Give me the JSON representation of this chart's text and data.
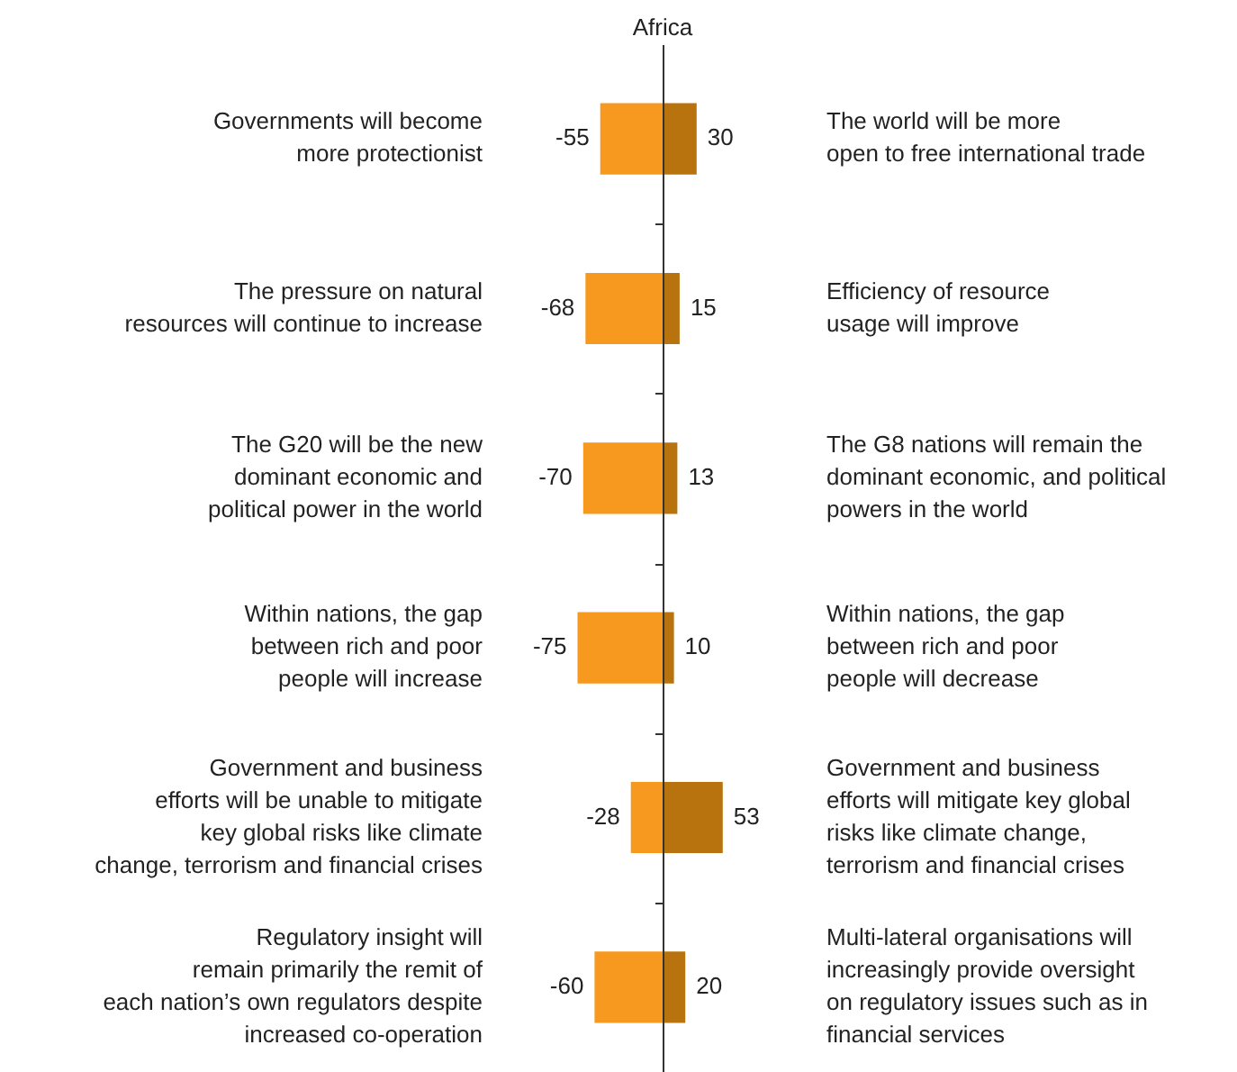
{
  "chart_data": {
    "type": "bar",
    "orientation": "horizontal",
    "stacked": true,
    "title": "Africa",
    "categories": [
      "Governments will become\nmore protectionist",
      "The pressure on natural\nresources will continue to increase",
      "The G20 will be the new\ndominant economic and\npolitical power in the world",
      "Within nations, the gap\nbetween rich and poor\npeople will increase",
      "Government and business\nefforts will be unable to mitigate\nkey global risks like climate\nchange, terrorism and financial crises",
      "Regulatory insight will\nremain primarily the remit of\neach nation’s own regulators despite\nincreased co-operation"
    ],
    "series": [
      {
        "color": "#f7991f",
        "values": [
          -55,
          -68,
          -70,
          -75,
          -28,
          -60
        ]
      },
      {
        "color": "#b8730f",
        "values": [
          30,
          15,
          13,
          10,
          53,
          20
        ]
      }
    ],
    "annotations": [
      "The world will be more\nopen to free international trade",
      "Efficiency of resource\nusage will improve",
      "The G8 nations will remain the\ndominant economic, and political\npowers in the world",
      "Within nations, the gap\nbetween rich and poor\npeople will decrease",
      "Government and business\nefforts will mitigate key global\nrisks like climate change,\nterrorism and financial crises",
      "Multi-lateral organisations will\nincreasingly provide oversight\non regulatory issues such as in\nfinancial services"
    ],
    "data_labels": true,
    "legend": false
  }
}
